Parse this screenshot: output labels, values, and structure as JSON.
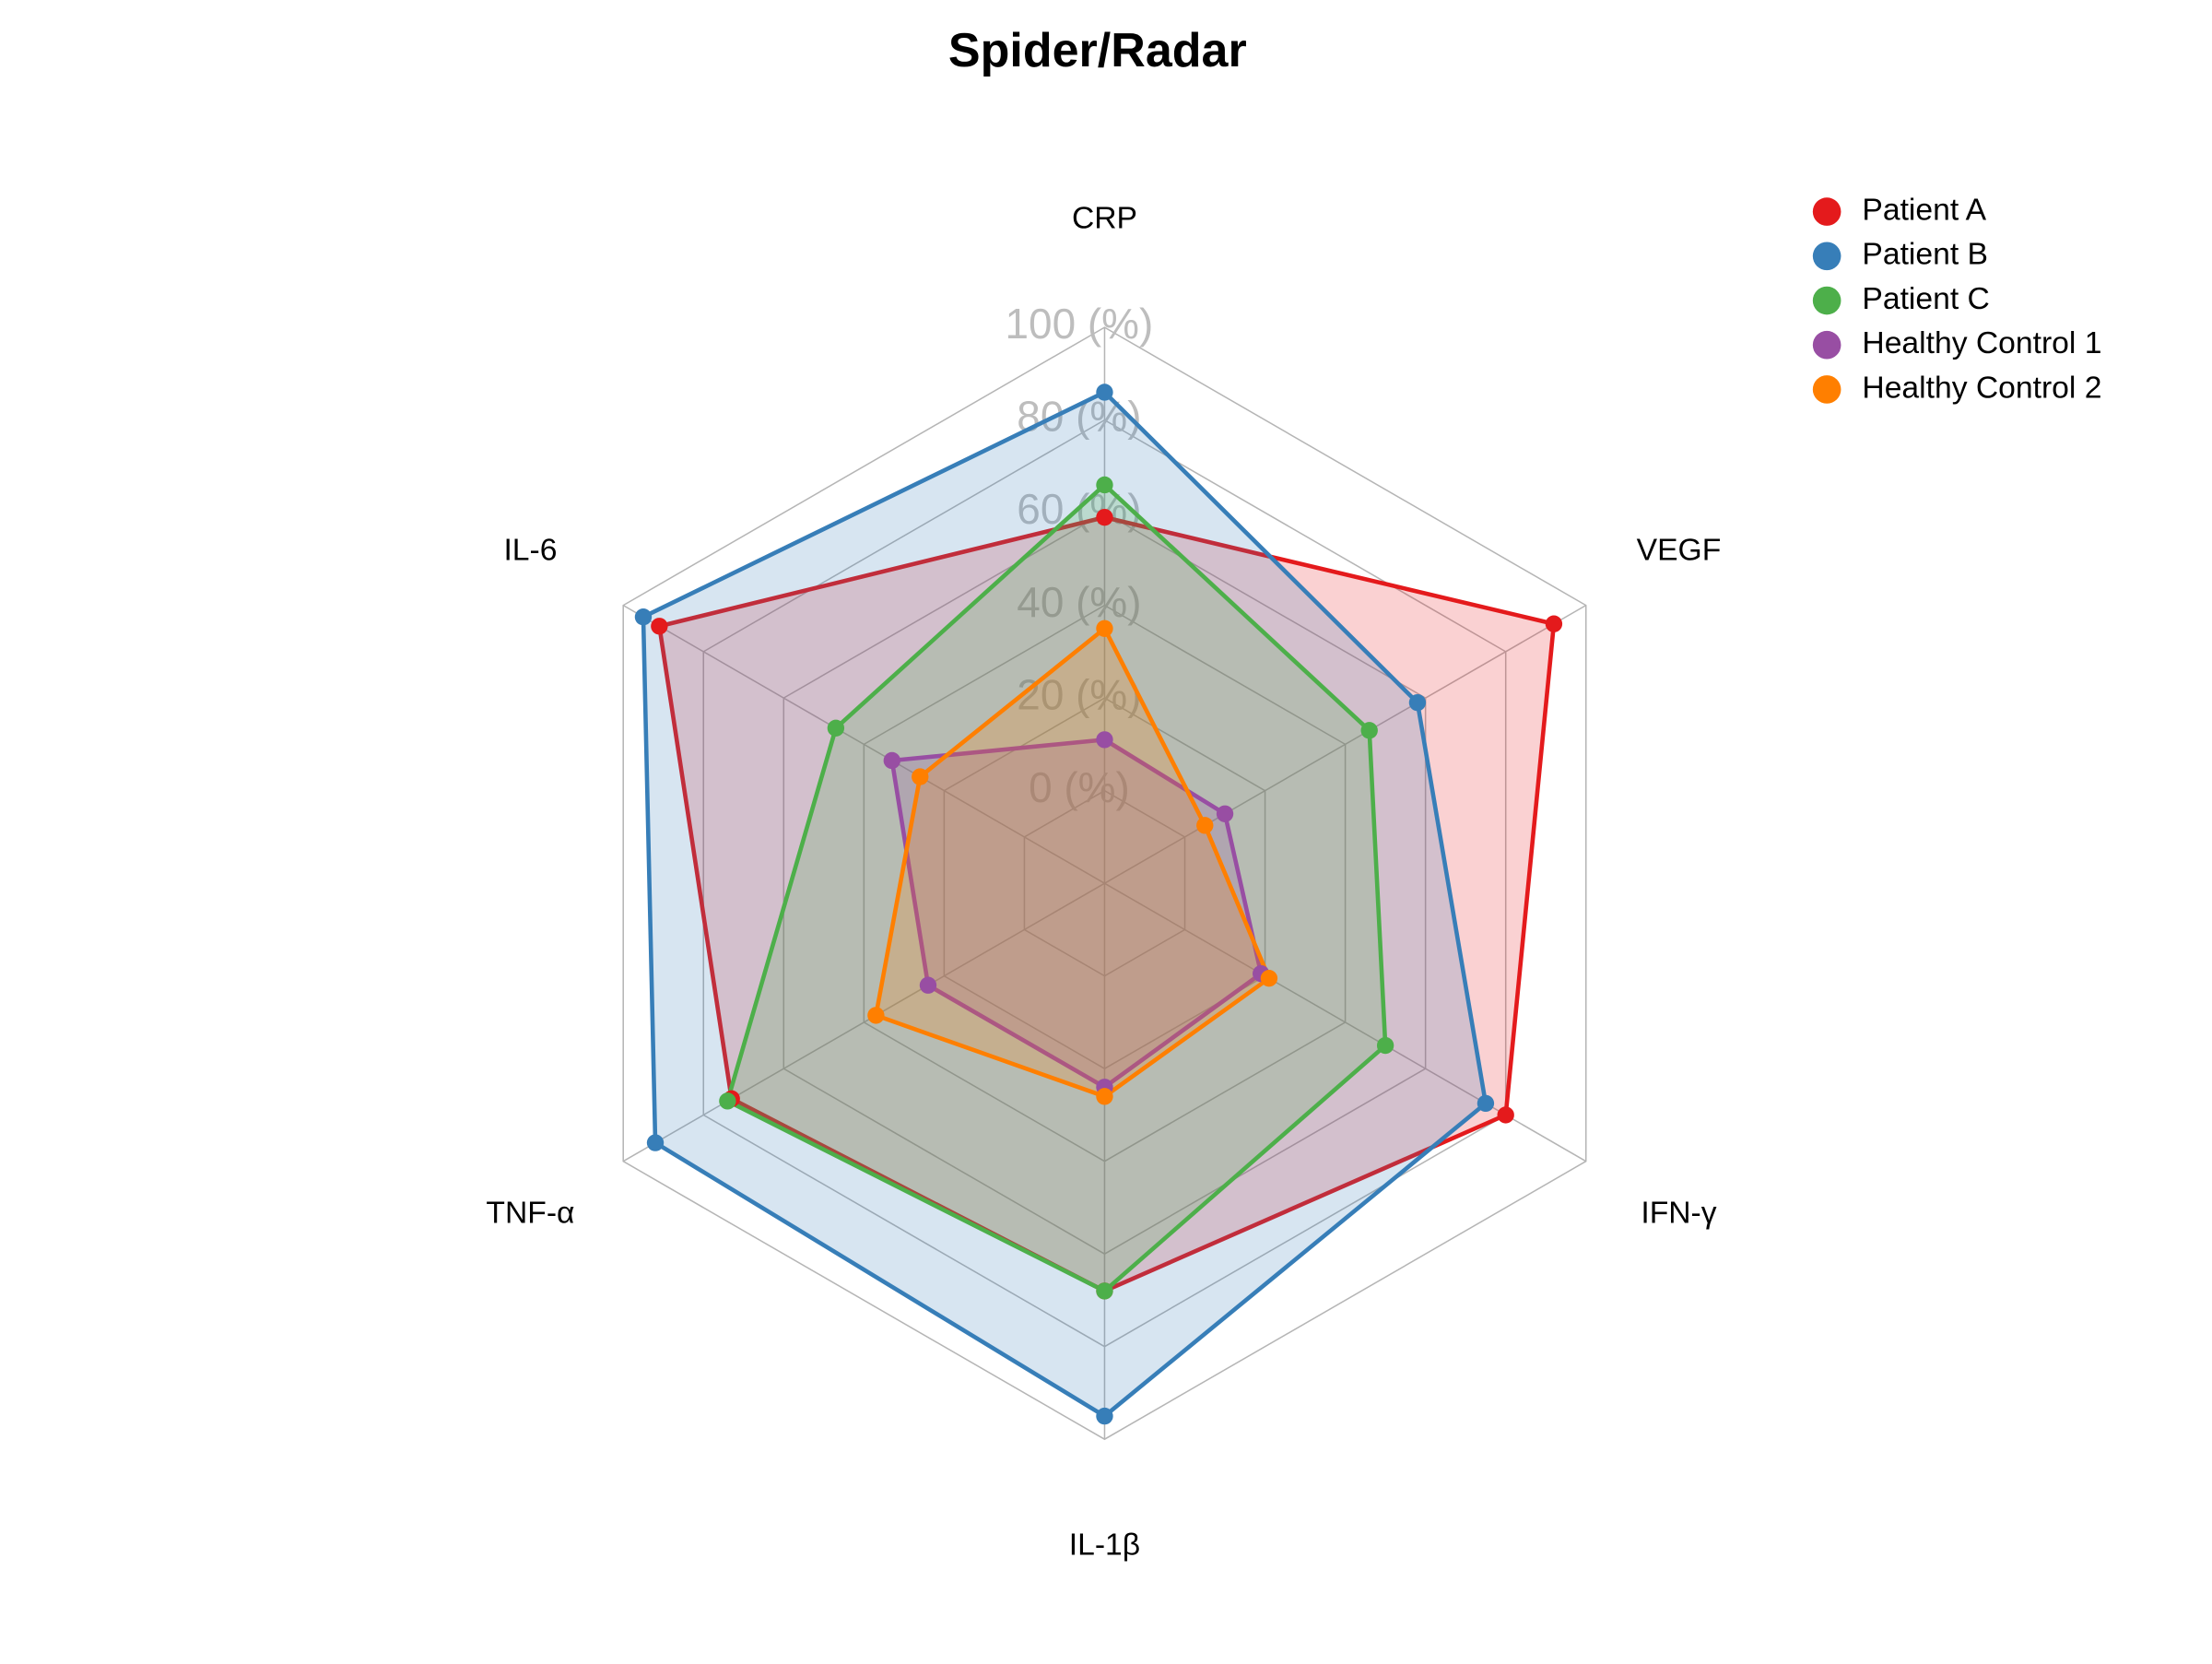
{
  "chart_data": {
    "type": "radar",
    "title": "Spider/Radar",
    "categories": [
      "CRP",
      "VEGF",
      "IFN-γ",
      "IL-1β",
      "TNF-α",
      "IL-6"
    ],
    "ylim": [
      -20,
      100
    ],
    "yticks": [
      {
        "value": 0,
        "label": "0 (%)"
      },
      {
        "value": 20,
        "label": "20 (%)"
      },
      {
        "value": 40,
        "label": "40 (%)"
      },
      {
        "value": 60,
        "label": "60 (%)"
      },
      {
        "value": 80,
        "label": "80 (%)"
      },
      {
        "value": 100,
        "label": "100 (%)"
      }
    ],
    "grid": true,
    "legend": "top-right",
    "series": [
      {
        "name": "Patient A",
        "color": "#e41a1c",
        "values": [
          59,
          92,
          80,
          68,
          73,
          91
        ]
      },
      {
        "name": "Patient B",
        "color": "#377eb8",
        "values": [
          86,
          58,
          75,
          95,
          92,
          95
        ]
      },
      {
        "name": "Patient C",
        "color": "#4daf4a",
        "values": [
          66,
          46,
          50,
          68,
          74,
          47
        ]
      },
      {
        "name": "Healthy Control 1",
        "color": "#984ea3",
        "values": [
          11,
          10,
          19,
          24,
          24,
          33
        ]
      },
      {
        "name": "Healthy Control 2",
        "color": "#ff7f00",
        "values": [
          35,
          5,
          21,
          26,
          37,
          26
        ]
      }
    ]
  }
}
